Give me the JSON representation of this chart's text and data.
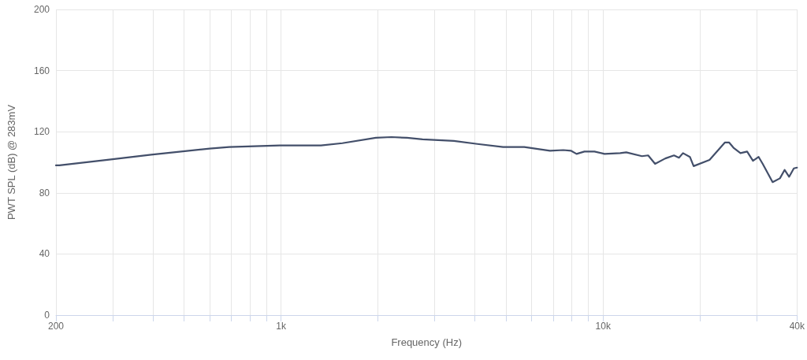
{
  "chart_data": {
    "type": "line",
    "xlabel": "Frequency (Hz)",
    "ylabel": "PWT SPL (dB) @ 283mV",
    "log": "x",
    "grid": true,
    "marker": "none",
    "line_style": "solid",
    "xlim": [
      200,
      40000
    ],
    "ylim": [
      0,
      200
    ],
    "yticks": [
      0,
      40,
      80,
      120,
      160,
      200
    ],
    "xticks": [
      200,
      {
        "value": 300,
        "label": null
      },
      {
        "value": 400,
        "label": null
      },
      {
        "value": 500,
        "label": null
      },
      {
        "value": 600,
        "label": null
      },
      {
        "value": 700,
        "label": null
      },
      {
        "value": 800,
        "label": null
      },
      {
        "value": 900,
        "label": null
      },
      {
        "value": 1000,
        "label": "1k"
      },
      {
        "value": 2000,
        "label": null
      },
      {
        "value": 3000,
        "label": null
      },
      {
        "value": 4000,
        "label": null
      },
      {
        "value": 5000,
        "label": null
      },
      {
        "value": 6000,
        "label": null
      },
      {
        "value": 7000,
        "label": null
      },
      {
        "value": 8000,
        "label": null
      },
      {
        "value": 9000,
        "label": null
      },
      {
        "value": 10000,
        "label": "10k"
      },
      {
        "value": 20000,
        "label": null
      },
      {
        "value": 30000,
        "label": null
      },
      {
        "value": 40000,
        "label": "40k"
      }
    ],
    "series": [
      {
        "color": "#434f6a",
        "x": [
          200,
          205,
          300,
          395,
          600,
          690,
          990,
          1330,
          1550,
          1970,
          2200,
          2460,
          2750,
          3440,
          4070,
          4890,
          5690,
          6840,
          7520,
          7960,
          8270,
          8750,
          9400,
          10100,
          11300,
          11800,
          13200,
          13800,
          14500,
          15600,
          16600,
          17200,
          17700,
          18600,
          19100,
          21400,
          23900,
          24600,
          25400,
          26700,
          28000,
          29200,
          30400,
          31300,
          33600,
          35400,
          36600,
          37800,
          39100,
          40000
        ],
        "values": [
          98,
          98,
          102,
          105,
          109,
          110,
          111,
          111,
          112.5,
          116,
          116.5,
          116,
          115,
          114,
          112,
          110,
          110,
          107.5,
          108,
          107.5,
          105.5,
          107,
          107,
          105.5,
          106,
          106.5,
          104,
          104.5,
          99,
          102.5,
          104.5,
          103,
          106,
          103.5,
          97.5,
          101.5,
          113,
          113,
          109.5,
          106,
          107,
          101,
          103.5,
          99,
          87,
          89.5,
          95,
          90.5,
          96,
          96.5
        ]
      }
    ]
  }
}
